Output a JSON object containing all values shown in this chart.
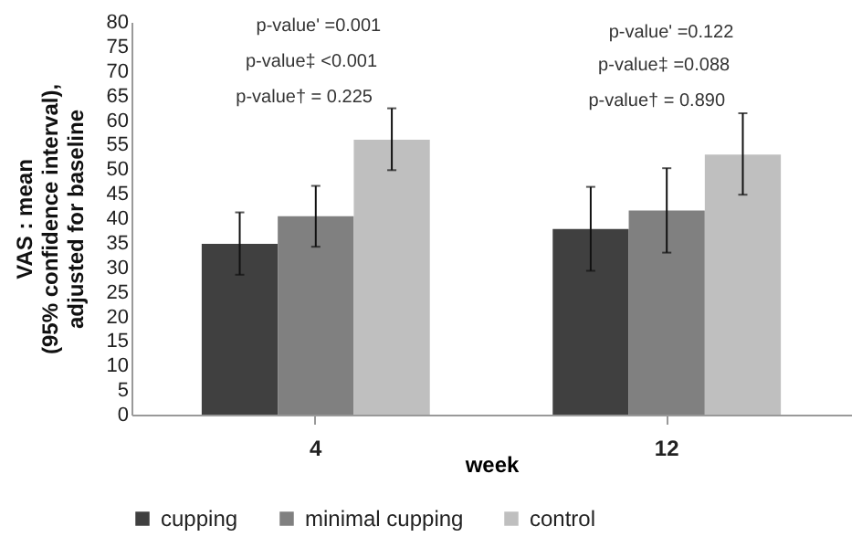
{
  "chart_data": {
    "type": "bar",
    "ylabel": "VAS : mean\n(95% confidence interval),\nadjusted for baseline",
    "xlabel": "week",
    "categories": [
      "4",
      "12"
    ],
    "series": [
      {
        "name": "cupping",
        "color": "#404040",
        "values": [
          34.8,
          37.8
        ],
        "errors": [
          [
            28.5,
            41.2
          ],
          [
            29.3,
            46.4
          ]
        ]
      },
      {
        "name": "minimal cupping",
        "color": "#808080",
        "values": [
          40.4,
          41.6
        ],
        "errors": [
          [
            34.2,
            46.6
          ],
          [
            33,
            50.2
          ]
        ]
      },
      {
        "name": "control",
        "color": "#bfbfbf",
        "values": [
          56,
          53
        ],
        "errors": [
          [
            49.8,
            62.4
          ],
          [
            44.8,
            61.4
          ]
        ]
      }
    ],
    "ylim": [
      0,
      80
    ],
    "yticks": [
      0,
      5,
      10,
      15,
      20,
      25,
      30,
      35,
      40,
      45,
      50,
      55,
      60,
      65,
      70,
      75,
      80
    ],
    "grid": false,
    "legend": "bottom",
    "annotations": [
      "p-value† = 0.225",
      "p-value‡ <0.001",
      "p-value' =0.001",
      "p-value† = 0.890",
      "p-value‡ =0.088",
      "p-value' =0.122"
    ]
  }
}
